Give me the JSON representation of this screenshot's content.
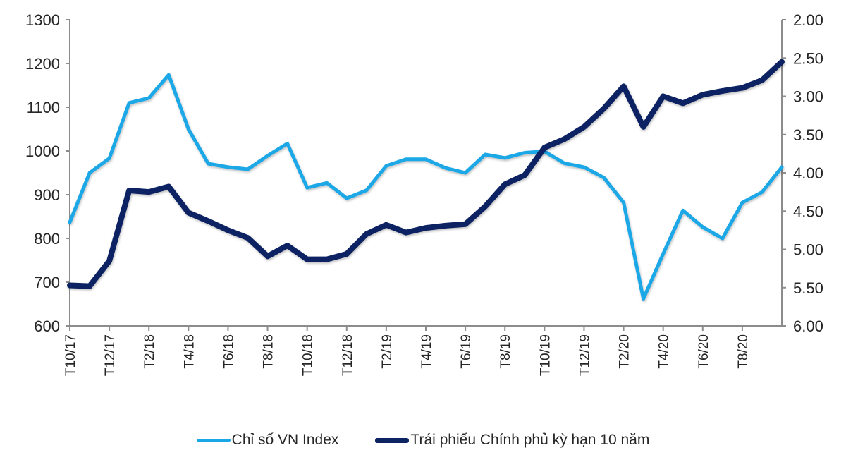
{
  "chart_data": {
    "type": "line",
    "title": "",
    "xlabel": "",
    "ylabel": "",
    "x": [
      "T10/17",
      "T11/17",
      "T12/17",
      "T1/18",
      "T2/18",
      "T3/18",
      "T4/18",
      "T5/18",
      "T6/18",
      "T7/18",
      "T8/18",
      "T9/18",
      "T10/18",
      "T11/18",
      "T12/18",
      "T1/19",
      "T2/19",
      "T3/19",
      "T4/19",
      "T5/19",
      "T6/19",
      "T7/19",
      "T8/19",
      "T9/19",
      "T10/19",
      "T11/19",
      "T12/19",
      "T1/20",
      "T2/20",
      "T3/20",
      "T4/20",
      "T5/20",
      "T6/20",
      "T7/20",
      "T8/20",
      "T9/20",
      "T10/20"
    ],
    "x_tick_labels": [
      "T10/17",
      "T12/17",
      "T2/18",
      "T4/18",
      "T6/18",
      "T8/18",
      "T10/18",
      "T12/18",
      "T2/19",
      "T4/19",
      "T6/19",
      "T8/19",
      "T10/19",
      "T12/19",
      "T2/20",
      "T4/20",
      "T6/20",
      "T8/20"
    ],
    "left_axis": {
      "ylim": [
        600,
        1300
      ],
      "ticks": [
        "600",
        "700",
        "800",
        "900",
        "1000",
        "1100",
        "1200",
        "1300"
      ]
    },
    "right_axis": {
      "ylim": [
        6.0,
        2.0
      ],
      "inverted": true,
      "ticks": [
        "2.00",
        "2.50",
        "3.00",
        "3.50",
        "4.00",
        "4.50",
        "5.00",
        "5.50",
        "6.00"
      ]
    },
    "series": [
      {
        "name": "Chỉ số VN Index",
        "axis": "left",
        "color": "#1aa7e6",
        "values": [
          837,
          950,
          983,
          1110,
          1121,
          1174,
          1050,
          971,
          963,
          958,
          989,
          1017,
          916,
          927,
          892,
          910,
          966,
          981,
          981,
          961,
          950,
          992,
          984,
          996,
          999,
          972,
          963,
          939,
          882,
          662,
          765,
          864,
          826,
          800,
          882,
          906,
          963
        ]
      },
      {
        "name": "Trái phiếu Chính phủ kỳ hạn 10 năm",
        "axis": "right",
        "color": "#0d2462",
        "values": [
          5.47,
          5.48,
          5.15,
          4.23,
          4.25,
          4.18,
          4.52,
          4.63,
          4.75,
          4.85,
          5.09,
          4.95,
          5.13,
          5.13,
          5.06,
          4.8,
          4.68,
          4.78,
          4.72,
          4.69,
          4.67,
          4.44,
          4.15,
          4.03,
          3.67,
          3.56,
          3.4,
          3.16,
          2.87,
          3.4,
          3.0,
          3.09,
          2.98,
          2.93,
          2.89,
          2.79,
          2.55
        ]
      }
    ],
    "grid": false,
    "legend_position": "bottom"
  },
  "legend": {
    "items": [
      {
        "label": "Chỉ số VN Index",
        "color": "#1aa7e6"
      },
      {
        "label": "Trái phiếu Chính phủ kỳ hạn 10 năm",
        "color": "#0d2462"
      }
    ]
  }
}
